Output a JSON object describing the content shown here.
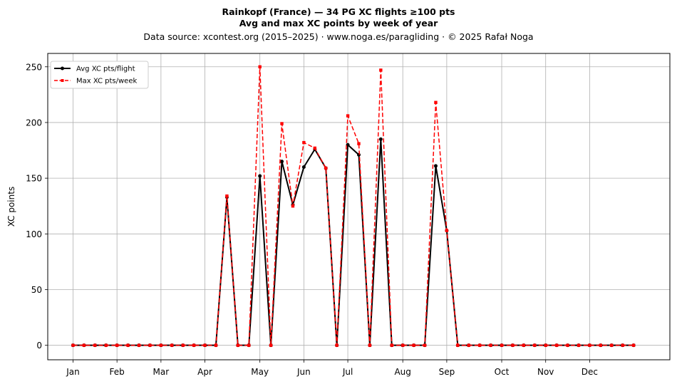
{
  "chart_data": {
    "type": "line",
    "title": "Rainkopf (France)  —  34 PG XC flights ≥100 pts",
    "subtitle": "Avg and max XC points by week of year",
    "source": "Data source: xcontest.org (2015–2025)  ·  www.noga.es/paragliding  ·  © 2025 Rafał Noga",
    "ylabel": "XC points",
    "xlabel": "",
    "ylim": [
      -13,
      262
    ],
    "xlim": [
      -2.3,
      54.3
    ],
    "grid": true,
    "legend_position": "top-left",
    "x_ticks": [
      {
        "label": "Jan",
        "week": 0
      },
      {
        "label": "Feb",
        "week": 4
      },
      {
        "label": "Mar",
        "week": 8
      },
      {
        "label": "Apr",
        "week": 12
      },
      {
        "label": "May",
        "week": 17
      },
      {
        "label": "Jun",
        "week": 21
      },
      {
        "label": "Jul",
        "week": 25
      },
      {
        "label": "Aug",
        "week": 30
      },
      {
        "label": "Sep",
        "week": 34
      },
      {
        "label": "Oct",
        "week": 39
      },
      {
        "label": "Nov",
        "week": 43
      },
      {
        "label": "Dec",
        "week": 47
      }
    ],
    "y_ticks": [
      0,
      50,
      100,
      150,
      200,
      250
    ],
    "x": [
      0,
      1,
      2,
      3,
      4,
      5,
      6,
      7,
      8,
      9,
      10,
      11,
      12,
      13,
      14,
      15,
      16,
      17,
      18,
      19,
      20,
      21,
      22,
      23,
      24,
      25,
      26,
      27,
      28,
      29,
      30,
      31,
      32,
      33,
      34,
      35,
      36,
      37,
      38,
      39,
      40,
      41,
      42,
      43,
      44,
      45,
      46,
      47,
      48,
      49,
      50,
      51
    ],
    "series": [
      {
        "name": "Avg XC pts/flight",
        "color": "#000000",
        "dashed": false,
        "marker": "circle",
        "values": [
          0,
          0,
          0,
          0,
          0,
          0,
          0,
          0,
          0,
          0,
          0,
          0,
          0,
          0,
          133,
          0,
          0,
          152,
          0,
          165,
          126,
          160,
          176,
          159,
          0,
          180,
          171,
          0,
          185,
          0,
          0,
          0,
          0,
          161,
          103,
          0,
          0,
          0,
          0,
          0,
          0,
          0,
          0,
          0,
          0,
          0,
          0,
          0,
          0,
          0,
          0,
          0
        ]
      },
      {
        "name": "Max XC pts/week",
        "color": "#ff0000",
        "dashed": true,
        "marker": "square",
        "values": [
          0,
          0,
          0,
          0,
          0,
          0,
          0,
          0,
          0,
          0,
          0,
          0,
          0,
          0,
          134,
          0,
          0,
          250,
          0,
          199,
          125,
          182,
          177,
          159,
          0,
          206,
          181,
          0,
          247,
          0,
          0,
          0,
          0,
          218,
          103,
          0,
          0,
          0,
          0,
          0,
          0,
          0,
          0,
          0,
          0,
          0,
          0,
          0,
          0,
          0,
          0,
          0
        ]
      }
    ]
  }
}
